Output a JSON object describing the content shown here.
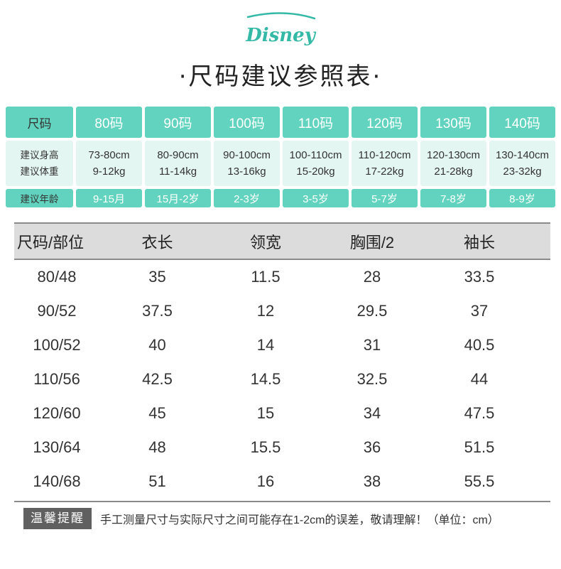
{
  "brand": {
    "logo_text": "Disney",
    "accent_color": "#35b9a7"
  },
  "title": "·尺码建议参照表·",
  "recommend": {
    "header_label": "尺码",
    "sizes": [
      "80码",
      "90码",
      "100码",
      "110码",
      "120码",
      "130码",
      "140码"
    ],
    "body_label_height": "建议身高",
    "body_label_weight": "建议体重",
    "heights": [
      "73-80cm",
      "80-90cm",
      "90-100cm",
      "100-110cm",
      "110-120cm",
      "120-130cm",
      "130-140cm"
    ],
    "weights": [
      "9-12kg",
      "11-14kg",
      "13-16kg",
      "15-20kg",
      "17-22kg",
      "21-28kg",
      "23-32kg"
    ],
    "age_label": "建议年龄",
    "ages": [
      "9-15月",
      "15月-2岁",
      "2-3岁",
      "3-5岁",
      "5-7岁",
      "7-8岁",
      "8-9岁"
    ],
    "colors": {
      "teal": "#62d3be",
      "light_teal": "#e4f6f1"
    }
  },
  "size_table": {
    "headers": [
      "尺码/部位",
      "衣长",
      "领宽",
      "胸围/2",
      "袖长"
    ],
    "rows": [
      [
        "80/48",
        "35",
        "11.5",
        "28",
        "33.5"
      ],
      [
        "90/52",
        "37.5",
        "12",
        "29.5",
        "37"
      ],
      [
        "100/52",
        "40",
        "14",
        "31",
        "40.5"
      ],
      [
        "110/56",
        "42.5",
        "14.5",
        "32.5",
        "44"
      ],
      [
        "120/60",
        "45",
        "15",
        "34",
        "47.5"
      ],
      [
        "130/64",
        "48",
        "15.5",
        "36",
        "51.5"
      ],
      [
        "140/68",
        "51",
        "16",
        "38",
        "55.5"
      ]
    ]
  },
  "note": {
    "badge": "温馨提醒",
    "text": "手工测量尺寸与实际尺寸之间可能存在1-2cm的误差，敬请理解！（单位：cm）"
  }
}
